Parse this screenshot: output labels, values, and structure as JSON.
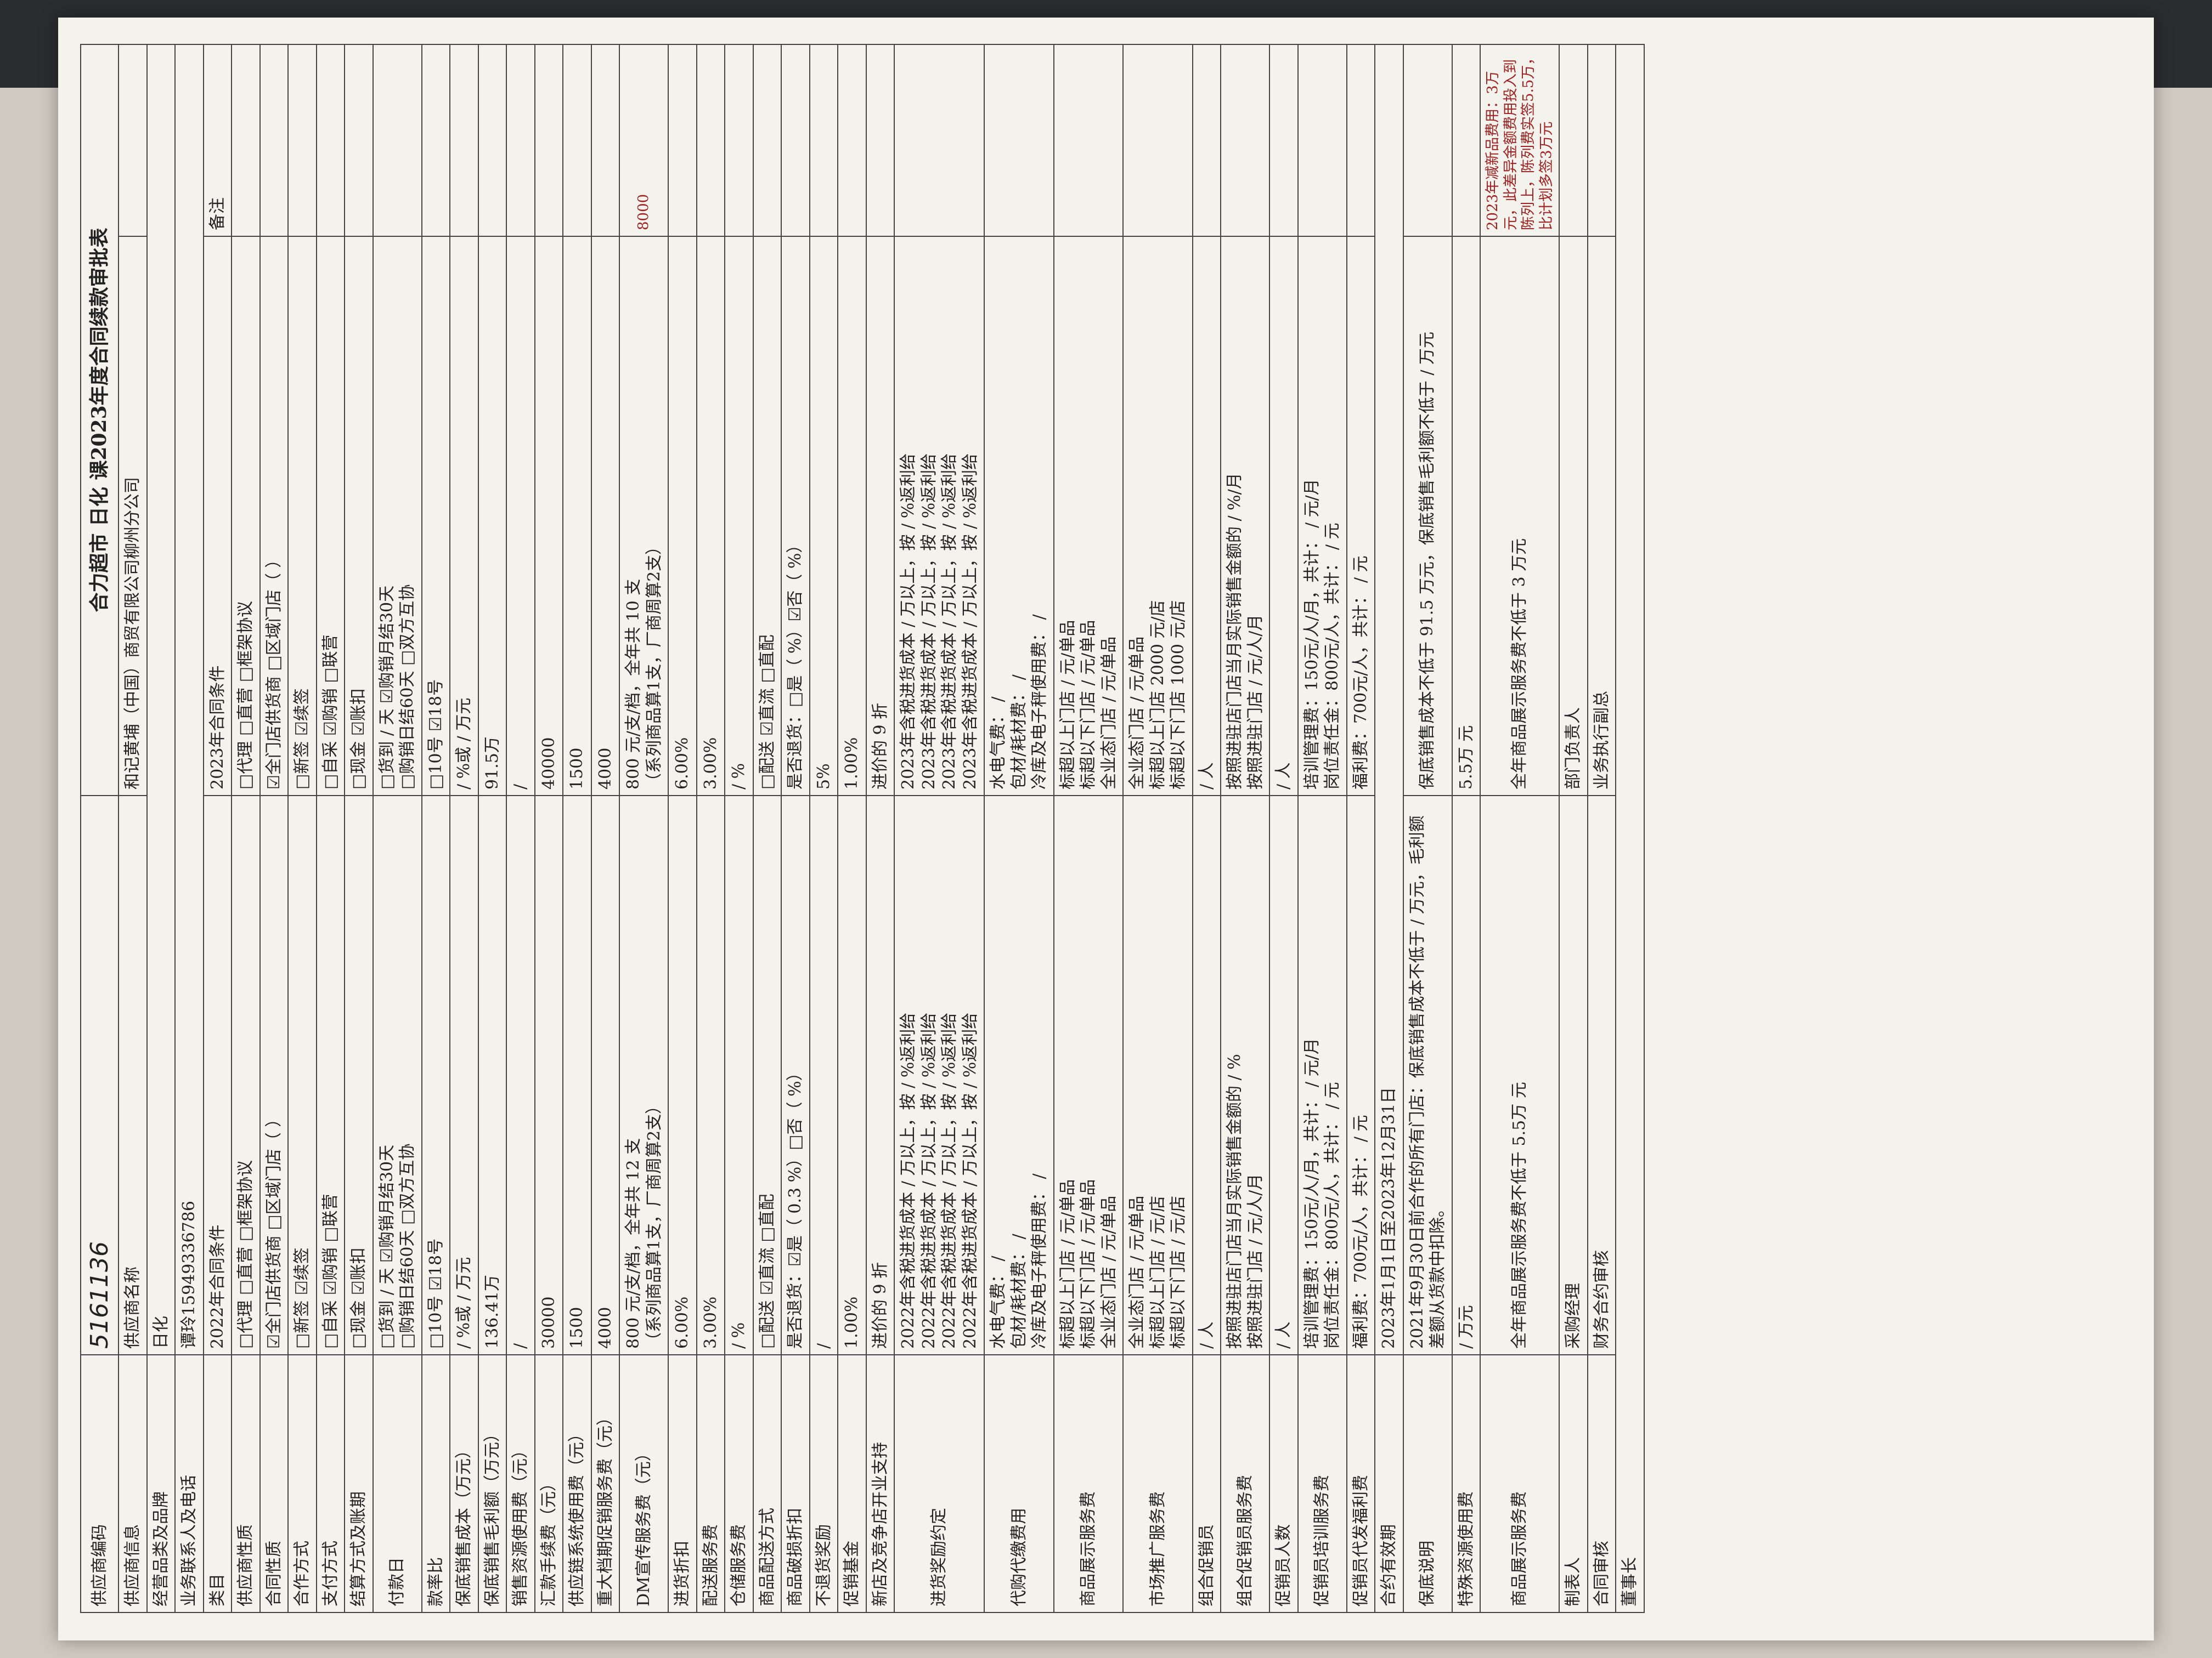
{
  "header": {
    "code_label": "供应商编码",
    "code": "5161136",
    "title": "合力超市 日化 课2023年度合同续款审批表"
  },
  "rows": [
    [
      "供应商信息",
      "供应商名称",
      "和记黄埔（中国）商贸有限公司柳州分公司"
    ],
    [
      "经营品类及品牌",
      "日化"
    ],
    [
      "业务联系人及电话",
      "谭玲15949336786"
    ],
    [
      "类目",
      "2022年合同条件",
      "2023年合同条件",
      "备注"
    ],
    [
      "供应商性质",
      "□代理 □直营 □框架协议",
      "□代理 □直营 □框架协议"
    ],
    [
      "合同性质",
      "☑全门店供货商 □区域门店（ ）",
      "☑全门店供货商 □区域门店（ ）"
    ],
    [
      "合作方式",
      "□新签 ☑续签",
      "□新签 ☑续签"
    ],
    [
      "支付方式",
      "□自采 ☑购销 □联营",
      "□自采 ☑购销 □联营"
    ],
    [
      "结算方式及账期",
      "□现金 ☑账扣",
      "□现金 ☑账扣"
    ],
    [
      "付款日",
      "□货到 / 天 ☑购销月结30天\n□购销日结60天 □双方互协",
      "□货到 / 天 ☑购销月结30天\n□购销日结60天 □双方互协"
    ],
    [
      "款率比",
      "□10号 ☑18号",
      "□10号 ☑18号"
    ],
    [
      "保底销售成本（万元）",
      "/ %或 / 万元",
      "/ %或 / 万元"
    ],
    [
      "保底销售毛利额（万元）",
      "136.41万",
      "91.5万"
    ],
    [
      "销售资源使用费（元）",
      "/",
      "/"
    ],
    [
      "汇款手续费（元）",
      "30000",
      "40000"
    ],
    [
      "供应链系统使用费（元）",
      "1500",
      "1500"
    ],
    [
      "重大档期促销服务费（元）",
      "4000",
      "4000"
    ],
    [
      "DM宣传服务费（元）",
      "800 元/支/档，全年共 12 支\n（系列商品算1支，厂商周算2支）",
      "800 元/支/档，全年共 10 支\n（系列商品算1支，厂商周算2支）",
      "8000"
    ],
    [
      "进货折扣",
      "6.00%",
      "6.00%"
    ],
    [
      "配送服务费",
      "3.00%",
      "3.00%"
    ],
    [
      "仓储服务费",
      "/ %",
      "/ %"
    ],
    [
      "商品配送方式",
      "□配送 ☑直流 □直配",
      "□配送 ☑直流 □直配"
    ],
    [
      "商品破损折扣",
      "是否退货：☑是（ 0.3 %）□否（ %）",
      "是否退货：□是（ %）☑否（ %）"
    ],
    [
      "不退货奖励",
      "/",
      "5%"
    ],
    [
      "促销基金",
      "1.00%",
      "1.00%"
    ],
    [
      "新店及竞争店开业支持",
      "进价的 9 折",
      "进价的 9 折"
    ],
    [
      "进货奖励约定",
      "2022年含税进货成本 / 万以上，按 / %返利给\n2022年含税进货成本 / 万以上，按 / %返利给\n2022年含税进货成本 / 万以上，按 / %返利给\n2022年含税进货成本 / 万以上，按 / %返利给",
      "2023年含税进货成本 / 万以上，按 / %返利给\n2023年含税进货成本 / 万以上，按 / %返利给\n2023年含税进货成本 / 万以上，按 / %返利给\n2023年含税进货成本 / 万以上，按 / %返利给"
    ],
    [
      "代购代缴费用",
      "水电气费： /\n包材/耗材费： /\n冷库及电子秤使用费： /",
      "水电气费： /\n包材/耗材费： /\n冷库及电子秤使用费： /"
    ],
    [
      "商品展示服务费",
      "标超以上门店 / 元/单品\n标超以下门店 / 元/单品\n全业态门店 / 元/单品",
      "标超以上门店 / 元/单品\n标超以下门店 / 元/单品\n全业态门店 / 元/单品"
    ],
    [
      "市场推广服务费",
      "全业态门店 / 元/单品\n标超以上门店 / 元/店\n标超以下门店 / 元/店",
      "全业态门店 / 元/单品\n标超以上门店 2000 元/店\n标超以下门店 1000 元/店"
    ],
    [
      "组合促销员",
      "/ 人",
      "/ 人"
    ],
    [
      "组合促销员服务费",
      "按照进驻店门店当月实际销售金额的 / %\n按照进驻门店 / 元/人/月",
      "按照进驻店门店当月实际销售金额的 / %/月\n按照进驻门店 / 元/人/月"
    ],
    [
      "促销员人数",
      "/ 人",
      "/ 人"
    ],
    [
      "促销员培训服务费",
      "培训管理费：150元/人/月，共计： / 元/月\n岗位责任金：800元/人，共计： / 元",
      "培训管理费：150元/人/月，共计： / 元/月\n岗位责任金：800元/人，共计： / 元"
    ],
    [
      "促销员代发福利费",
      "福利费：700元/人，共计： / 元",
      "福利费：700元/人，共计： / 元"
    ],
    [
      "合约有效期",
      "2023年1月1日至2023年12月31日"
    ],
    [
      "保底说明",
      "2021年9月30日前合作的所有门店：保底销售成本不低于 / 万元，毛利额差额从货款中扣除。",
      "保底销售成本不低于 91.5 万元，保底销售毛利额不低于 / 万元"
    ],
    [
      "特殊资源使用费",
      "/ 万元",
      "5.5万 元"
    ],
    [
      "商品展示服务费",
      "全年商品展示服务费不低于 5.5万 元",
      "全年商品展示服务费不低于 3 万元",
      "2023年减新品费用：3万元，此差异金额费用投入到陈列上，陈列费实签5.5万，比计划多签3万元"
    ],
    [
      "制表人",
      "采购经理",
      "部门负责人"
    ],
    [
      "合同审核",
      "财务合约审核",
      "业务执行副总"
    ],
    [
      "董事长"
    ]
  ]
}
